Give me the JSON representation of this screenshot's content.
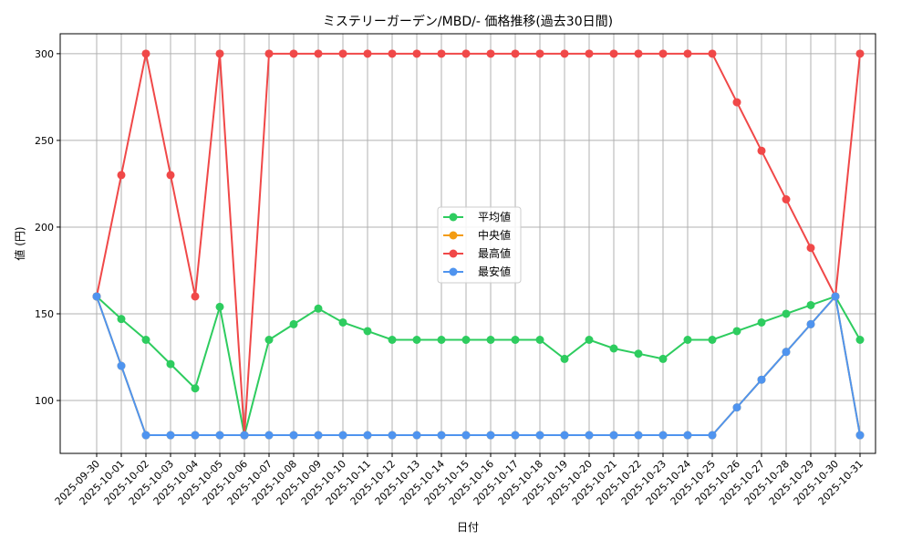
{
  "chart_data": {
    "type": "line",
    "title": "ミステリーガーデン/MBD/- 価格推移(過去30日間)",
    "xlabel": "日付",
    "ylabel": "値 (円)",
    "ylim": [
      69.5,
      311.5
    ],
    "yticks": [
      100,
      150,
      200,
      250,
      300
    ],
    "grid": true,
    "legend_position": "center",
    "x": [
      "2025-09-30",
      "2025-10-01",
      "2025-10-02",
      "2025-10-03",
      "2025-10-04",
      "2025-10-05",
      "2025-10-06",
      "2025-10-07",
      "2025-10-08",
      "2025-10-09",
      "2025-10-10",
      "2025-10-11",
      "2025-10-12",
      "2025-10-13",
      "2025-10-14",
      "2025-10-15",
      "2025-10-16",
      "2025-10-17",
      "2025-10-18",
      "2025-10-19",
      "2025-10-20",
      "2025-10-21",
      "2025-10-22",
      "2025-10-23",
      "2025-10-24",
      "2025-10-25",
      "2025-10-26",
      "2025-10-27",
      "2025-10-28",
      "2025-10-29",
      "2025-10-30",
      "2025-10-31"
    ],
    "series": [
      {
        "name": "平均値",
        "color": "#2ecc5f",
        "values": [
          160,
          147,
          135,
          121,
          107,
          154,
          80,
          135,
          144,
          153,
          145,
          140,
          135,
          135,
          135,
          135,
          135,
          135,
          135,
          124,
          135,
          130,
          127,
          124,
          135,
          135,
          140,
          145,
          150,
          155,
          160,
          135
        ]
      },
      {
        "name": "中央値",
        "color": "#f39c12",
        "values": [
          160,
          120,
          80,
          80,
          80,
          80,
          80,
          80,
          80,
          80,
          80,
          80,
          80,
          80,
          80,
          80,
          80,
          80,
          80,
          80,
          80,
          80,
          80,
          80,
          80,
          80,
          96,
          112,
          128,
          144,
          160,
          80
        ]
      },
      {
        "name": "最高値",
        "color": "#f04848",
        "values": [
          160,
          230,
          300,
          230,
          160,
          300,
          80,
          300,
          300,
          300,
          300,
          300,
          300,
          300,
          300,
          300,
          300,
          300,
          300,
          300,
          300,
          300,
          300,
          300,
          300,
          300,
          272,
          244,
          216,
          188,
          160,
          300
        ]
      },
      {
        "name": "最安値",
        "color": "#4f94ef",
        "values": [
          160,
          120,
          80,
          80,
          80,
          80,
          80,
          80,
          80,
          80,
          80,
          80,
          80,
          80,
          80,
          80,
          80,
          80,
          80,
          80,
          80,
          80,
          80,
          80,
          80,
          80,
          96,
          112,
          128,
          144,
          160,
          80
        ]
      }
    ]
  }
}
